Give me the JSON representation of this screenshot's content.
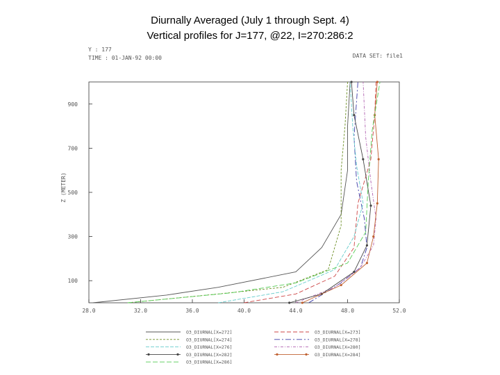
{
  "title_line1": "Diurnally Averaged (July 1 through Sept. 4)",
  "title_line2": "Vertical profiles for J=177, @22, I=270:286:2",
  "header": {
    "y_line": "Y : 177",
    "time_line": "TIME : 01-JAN-92 00:00",
    "dataset": "DATA SET: file1"
  },
  "chart_data": {
    "type": "line",
    "xlabel": "",
    "ylabel": "Z (METER)",
    "xlim": [
      28,
      52
    ],
    "ylim": [
      0,
      1000
    ],
    "xticks": [
      "28.0",
      "32.0",
      "36.0",
      "40.0",
      "44.0",
      "48.0",
      "52.0"
    ],
    "yticks": [
      "100",
      "300",
      "500",
      "700",
      "900"
    ],
    "series": [
      {
        "name": "O3_DIURNAL[X=272]",
        "color": "#555555",
        "marker": false,
        "points": [
          [
            28.3,
            0
          ],
          [
            34,
            35
          ],
          [
            38,
            70
          ],
          [
            44,
            140
          ],
          [
            46,
            250
          ],
          [
            47.5,
            400
          ],
          [
            48,
            600
          ],
          [
            48,
            800
          ],
          [
            48.2,
            1000
          ]
        ]
      },
      {
        "name": "O3_DIURNAL[X=273]",
        "color": "#cc4444",
        "marker": false,
        "points": [
          [
            40,
            0
          ],
          [
            44,
            40
          ],
          [
            47,
            120
          ],
          [
            48.5,
            250
          ],
          [
            48.8,
            450
          ],
          [
            49.8,
            650
          ],
          [
            50.1,
            850
          ],
          [
            50.2,
            1000
          ]
        ]
      },
      {
        "name": "O3_DIURNAL[X=274]",
        "color": "#6b8e23",
        "marker": false,
        "points": [
          [
            31,
            0
          ],
          [
            38,
            40
          ],
          [
            43,
            70
          ],
          [
            46.5,
            150
          ],
          [
            47.5,
            350
          ],
          [
            47.5,
            600
          ],
          [
            47.8,
            800
          ],
          [
            48,
            1000
          ]
        ]
      },
      {
        "name": "O3_DIURNAL[X=278]",
        "color": "#3a3aa8",
        "marker": false,
        "points": [
          [
            45,
            0
          ],
          [
            47.5,
            90
          ],
          [
            49,
            160
          ],
          [
            49.5,
            250
          ],
          [
            49.3,
            380
          ],
          [
            48.7,
            550
          ],
          [
            48.5,
            750
          ],
          [
            48.8,
            1000
          ]
        ]
      },
      {
        "name": "O3_DIURNAL[X=276]",
        "color": "#66cccc",
        "marker": false,
        "points": [
          [
            38,
            0
          ],
          [
            43,
            50
          ],
          [
            47,
            150
          ],
          [
            48.5,
            300
          ],
          [
            49.2,
            450
          ],
          [
            48.7,
            620
          ],
          [
            48.4,
            800
          ],
          [
            48.2,
            1000
          ]
        ]
      },
      {
        "name": "O3_DIURNAL[X=280]",
        "color": "#b060b0",
        "marker": false,
        "points": [
          [
            44,
            0
          ],
          [
            47,
            70
          ],
          [
            49,
            160
          ],
          [
            50,
            260
          ],
          [
            50.2,
            380
          ],
          [
            49.8,
            550
          ],
          [
            49.4,
            750
          ],
          [
            49.2,
            1000
          ]
        ]
      },
      {
        "name": "O3_DIURNAL[X=282]",
        "color": "#444444",
        "marker": true,
        "points": [
          [
            43.5,
            0
          ],
          [
            46,
            40
          ],
          [
            48.5,
            140
          ],
          [
            49.5,
            260
          ],
          [
            49.8,
            440
          ],
          [
            49.2,
            650
          ],
          [
            48.5,
            850
          ],
          [
            48.3,
            1000
          ]
        ]
      },
      {
        "name": "O3_DIURNAL[X=284]",
        "color": "#c06030",
        "marker": true,
        "points": [
          [
            44.5,
            0
          ],
          [
            47.5,
            80
          ],
          [
            49.5,
            180
          ],
          [
            50,
            300
          ],
          [
            50.3,
            450
          ],
          [
            50.4,
            650
          ],
          [
            50.1,
            850
          ],
          [
            50.3,
            1000
          ]
        ]
      },
      {
        "name": "O3_DIURNAL[X=286]",
        "color": "#55cc55",
        "marker": false,
        "points": [
          [
            31,
            0
          ],
          [
            39,
            45
          ],
          [
            44,
            90
          ],
          [
            48,
            180
          ],
          [
            49.4,
            320
          ],
          [
            49.6,
            550
          ],
          [
            49.9,
            780
          ],
          [
            50.5,
            1000
          ]
        ]
      }
    ]
  }
}
